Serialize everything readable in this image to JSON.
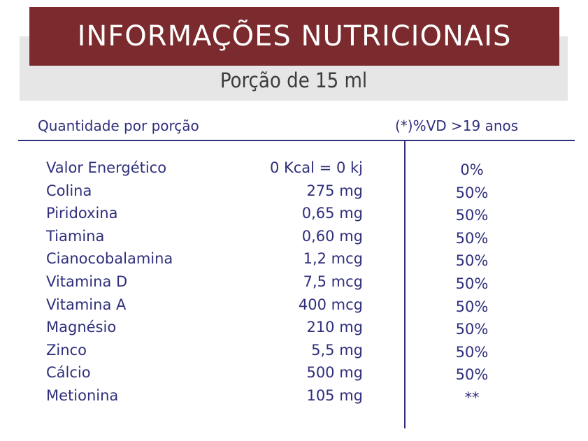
{
  "title": "INFORMAÇÕES NUTRICIONAIS",
  "portion": "Porção de 15 ml",
  "header": {
    "quantity_label": "Quantidade por porção",
    "vd_label": "(*)%VD >19 anos"
  },
  "rows": [
    {
      "name": "Valor Energético",
      "qty": "0 Kcal = 0 kj",
      "vd": "0%"
    },
    {
      "name": "Colina",
      "qty": "275 mg",
      "vd": "50%"
    },
    {
      "name": "Piridoxina",
      "qty": "0,65 mg",
      "vd": "50%"
    },
    {
      "name": "Tiamina",
      "qty": "0,60 mg",
      "vd": "50%"
    },
    {
      "name": "Cianocobalamina",
      "qty": "1,2 mcg",
      "vd": "50%"
    },
    {
      "name": "Vitamina D",
      "qty": "7,5 mcg",
      "vd": "50%"
    },
    {
      "name": "Vitamina A",
      "qty": "400 mcg",
      "vd": "50%"
    },
    {
      "name": "Magnésio",
      "qty": "210 mg",
      "vd": "50%"
    },
    {
      "name": "Zinco",
      "qty": "5,5 mg",
      "vd": "50%"
    },
    {
      "name": "Cálcio",
      "qty": "500 mg",
      "vd": "50%"
    },
    {
      "name": "Metionina",
      "qty": "105 mg",
      "vd": "**"
    }
  ],
  "colors": {
    "title_band": "#7b2a2d",
    "gray_band": "#e6e6e7",
    "text_blue": "#2f2f7c"
  }
}
